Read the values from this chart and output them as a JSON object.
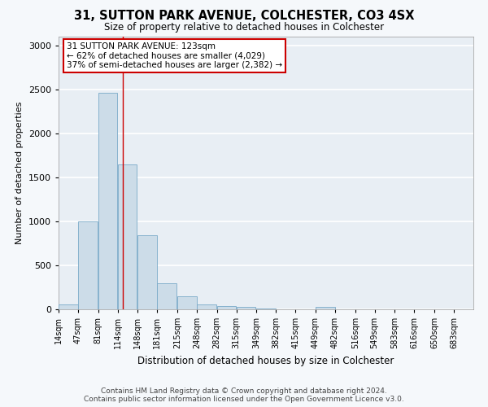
{
  "title": "31, SUTTON PARK AVENUE, COLCHESTER, CO3 4SX",
  "subtitle": "Size of property relative to detached houses in Colchester",
  "xlabel": "Distribution of detached houses by size in Colchester",
  "ylabel": "Number of detached properties",
  "bar_color": "#ccdce8",
  "bar_edge_color": "#7aaac8",
  "bins": [
    14,
    47,
    81,
    114,
    148,
    181,
    215,
    248,
    282,
    315,
    349,
    382,
    415,
    449,
    482,
    516,
    549,
    583,
    616,
    650,
    683
  ],
  "values": [
    55,
    1000,
    2460,
    1650,
    840,
    300,
    150,
    55,
    40,
    30,
    5,
    0,
    0,
    30,
    0,
    0,
    0,
    0,
    0,
    0,
    0
  ],
  "property_size": 123,
  "annotation_title": "31 SUTTON PARK AVENUE: 123sqm",
  "annotation_line1": "← 62% of detached houses are smaller (4,029)",
  "annotation_line2": "37% of semi-detached houses are larger (2,382) →",
  "annotation_box_color": "#ffffff",
  "annotation_box_edge_color": "#cc0000",
  "red_line_color": "#cc0000",
  "footer1": "Contains HM Land Registry data © Crown copyright and database right 2024.",
  "footer2": "Contains public sector information licensed under the Open Government Licence v3.0.",
  "ylim": [
    0,
    3100
  ],
  "plot_bg_color": "#e8eef4",
  "fig_bg_color": "#f5f8fb",
  "grid_color": "#ffffff",
  "tick_labels": [
    "14sqm",
    "47sqm",
    "81sqm",
    "114sqm",
    "148sqm",
    "181sqm",
    "215sqm",
    "248sqm",
    "282sqm",
    "315sqm",
    "349sqm",
    "382sqm",
    "415sqm",
    "449sqm",
    "482sqm",
    "516sqm",
    "549sqm",
    "583sqm",
    "616sqm",
    "650sqm",
    "683sqm"
  ]
}
